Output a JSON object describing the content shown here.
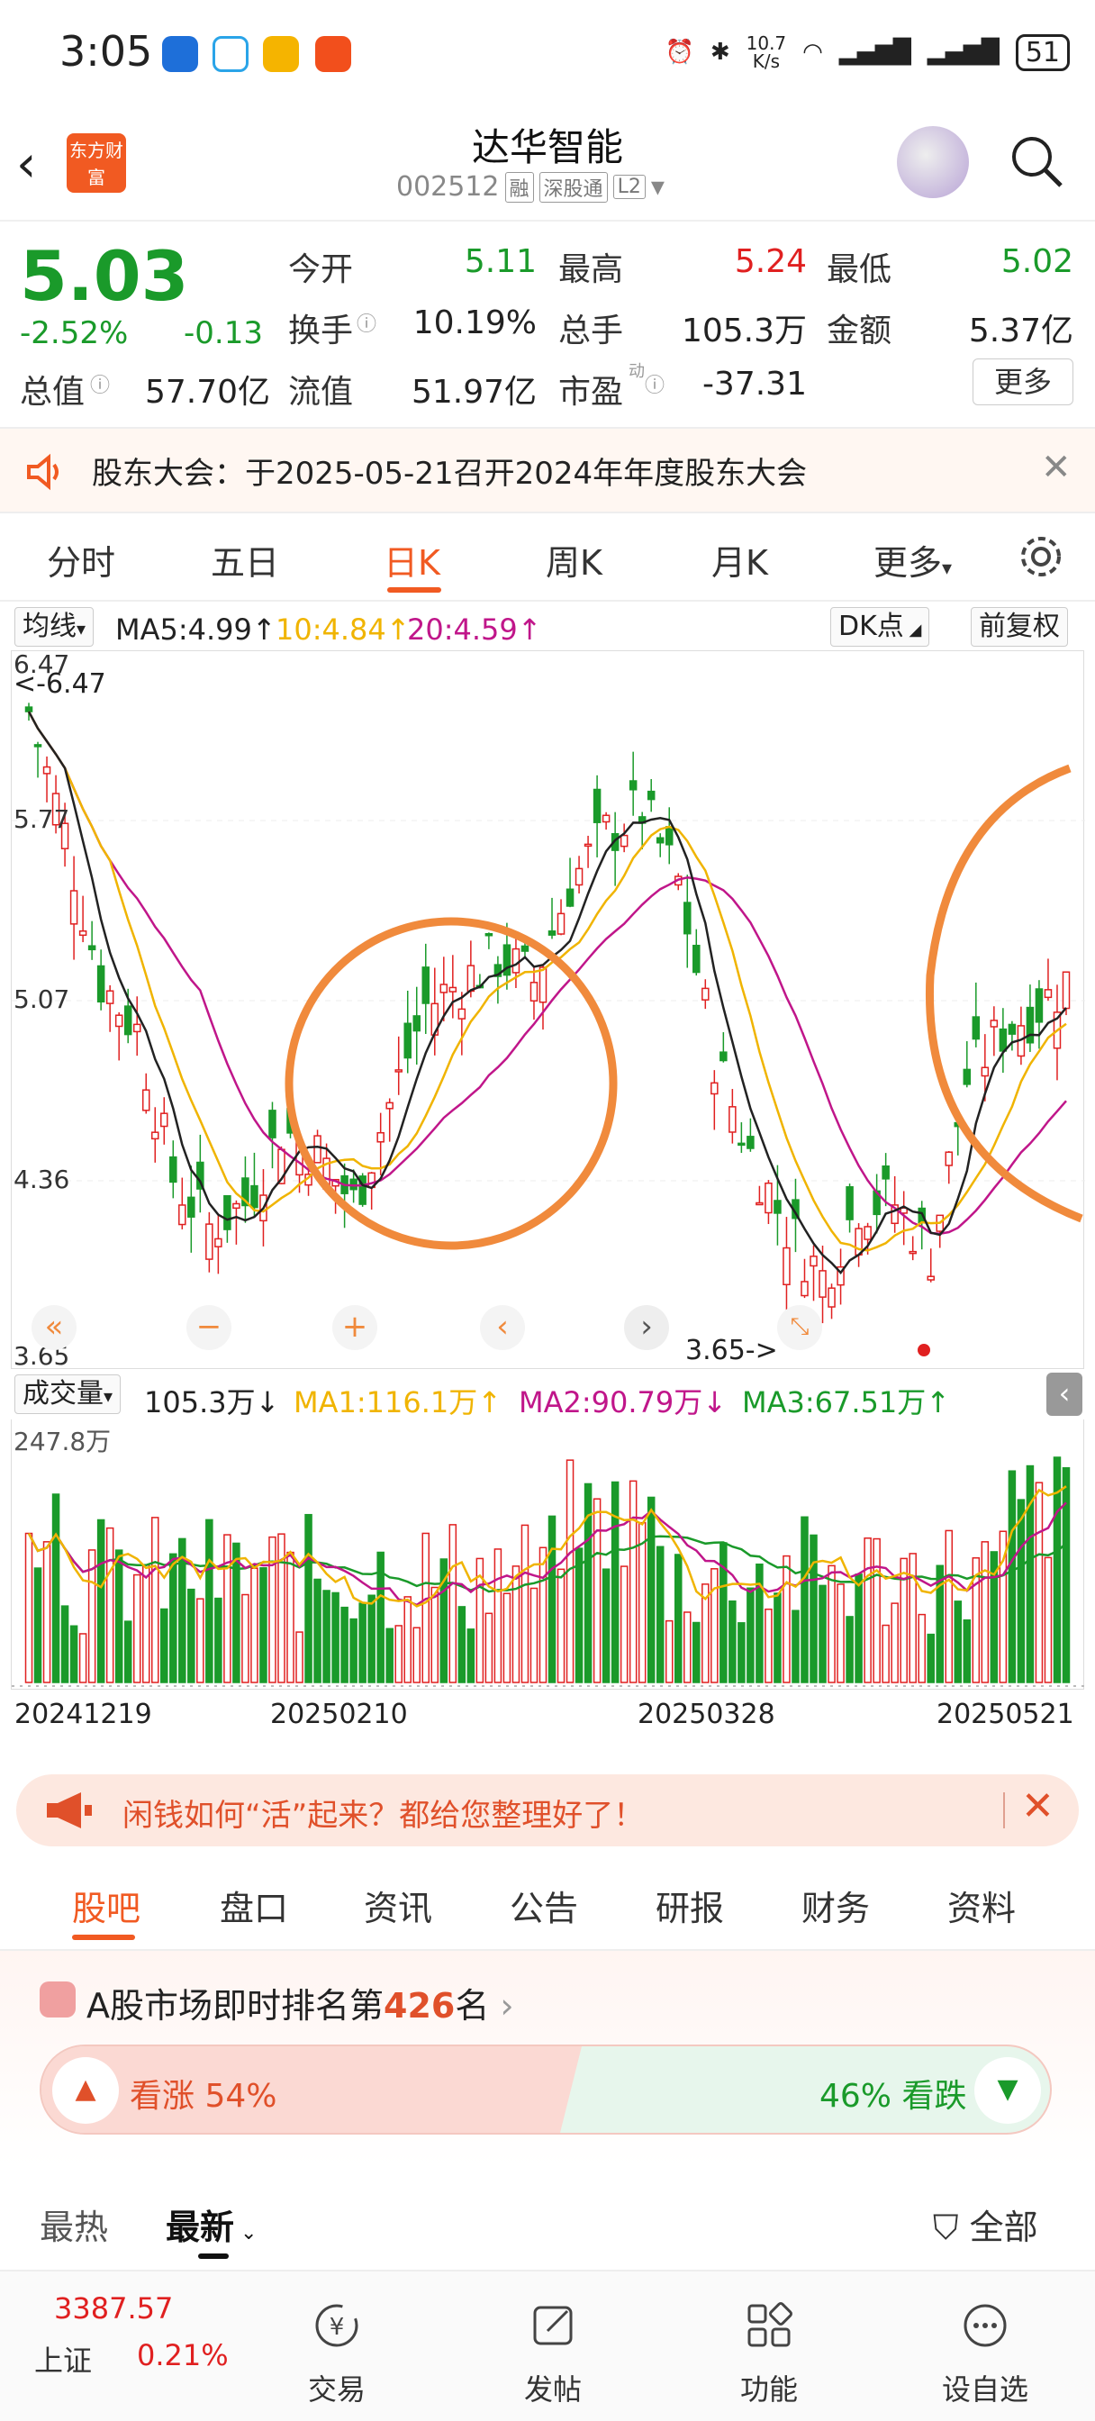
{
  "status": {
    "time": "3:05",
    "net_speed_top": "10.7",
    "net_speed_unit": "K/s",
    "battery": "51"
  },
  "header": {
    "title": "达华智能",
    "code": "002512",
    "tags": [
      "融",
      "深股通",
      "L2"
    ],
    "logo_text": "东方财富"
  },
  "quote": {
    "price": "5.03",
    "change_pct": "-2.52%",
    "change": "-0.13",
    "open_label": "今开",
    "open": "5.11",
    "high_label": "最高",
    "high": "5.24",
    "low_label": "最低",
    "low": "5.02",
    "turnover_label": "换手",
    "turnover": "10.19%",
    "volume_label": "总手",
    "volume": "105.3万",
    "amount_label": "金额",
    "amount": "5.37亿",
    "mktcap_label": "总值",
    "mktcap": "57.70亿",
    "float_label": "流值",
    "float": "51.97亿",
    "pe_label": "市盈",
    "pe_sup": "动",
    "pe": "-37.31",
    "more": "更多"
  },
  "notice": {
    "text": "股东大会：于2025-05-21召开2024年年度股东大会"
  },
  "tabs": [
    "分时",
    "五日",
    "日K",
    "周K",
    "月K",
    "更多"
  ],
  "ma_row": {
    "selector": "均线",
    "ma5": "MA5:4.99↑",
    "ma10": "10:4.84↑",
    "ma20": "20:4.59↑",
    "dk": "DK点",
    "adjust": "前复权"
  },
  "kchart_labels": {
    "top": "6.47",
    "top_marker": "<-6.47",
    "l1": "5.77",
    "l2": "5.07",
    "l3": "4.36",
    "bottom": "3.65",
    "low_marker": "3.65->"
  },
  "vol_row": {
    "selector": "成交量",
    "vol": "105.3万↓",
    "ma1": "MA1:116.1万↑",
    "ma2": "MA2:90.79万↓",
    "ma3": "MA3:67.51万↑",
    "max": "247.8万"
  },
  "dates": [
    "20241219",
    "20250210",
    "20250328",
    "20250521"
  ],
  "ad": {
    "text": "闲钱如何“活”起来？都给您整理好了！"
  },
  "subtabs": [
    "股吧",
    "盘口",
    "资讯",
    "公告",
    "研报",
    "财务",
    "资料"
  ],
  "rank": {
    "prefix": "A股市场即时排名第",
    "num": "426",
    "suffix": "名",
    "up": "看涨 54%",
    "down": "46% 看跌"
  },
  "feed": {
    "hot": "最热",
    "new": "最新",
    "filter": "全部"
  },
  "bottom": {
    "index_val": "3387.57",
    "index_name": "上证",
    "index_pct": "0.21%",
    "trade": "交易",
    "post": "发帖",
    "func": "功能",
    "watch": "设自选"
  },
  "colors": {
    "up": "#e02020",
    "down": "#1a9a2a",
    "accent": "#f15a22",
    "ma5": "#222222",
    "ma10": "#f0b400",
    "ma20": "#c0168a",
    "annotation": "#f08a3c"
  }
}
